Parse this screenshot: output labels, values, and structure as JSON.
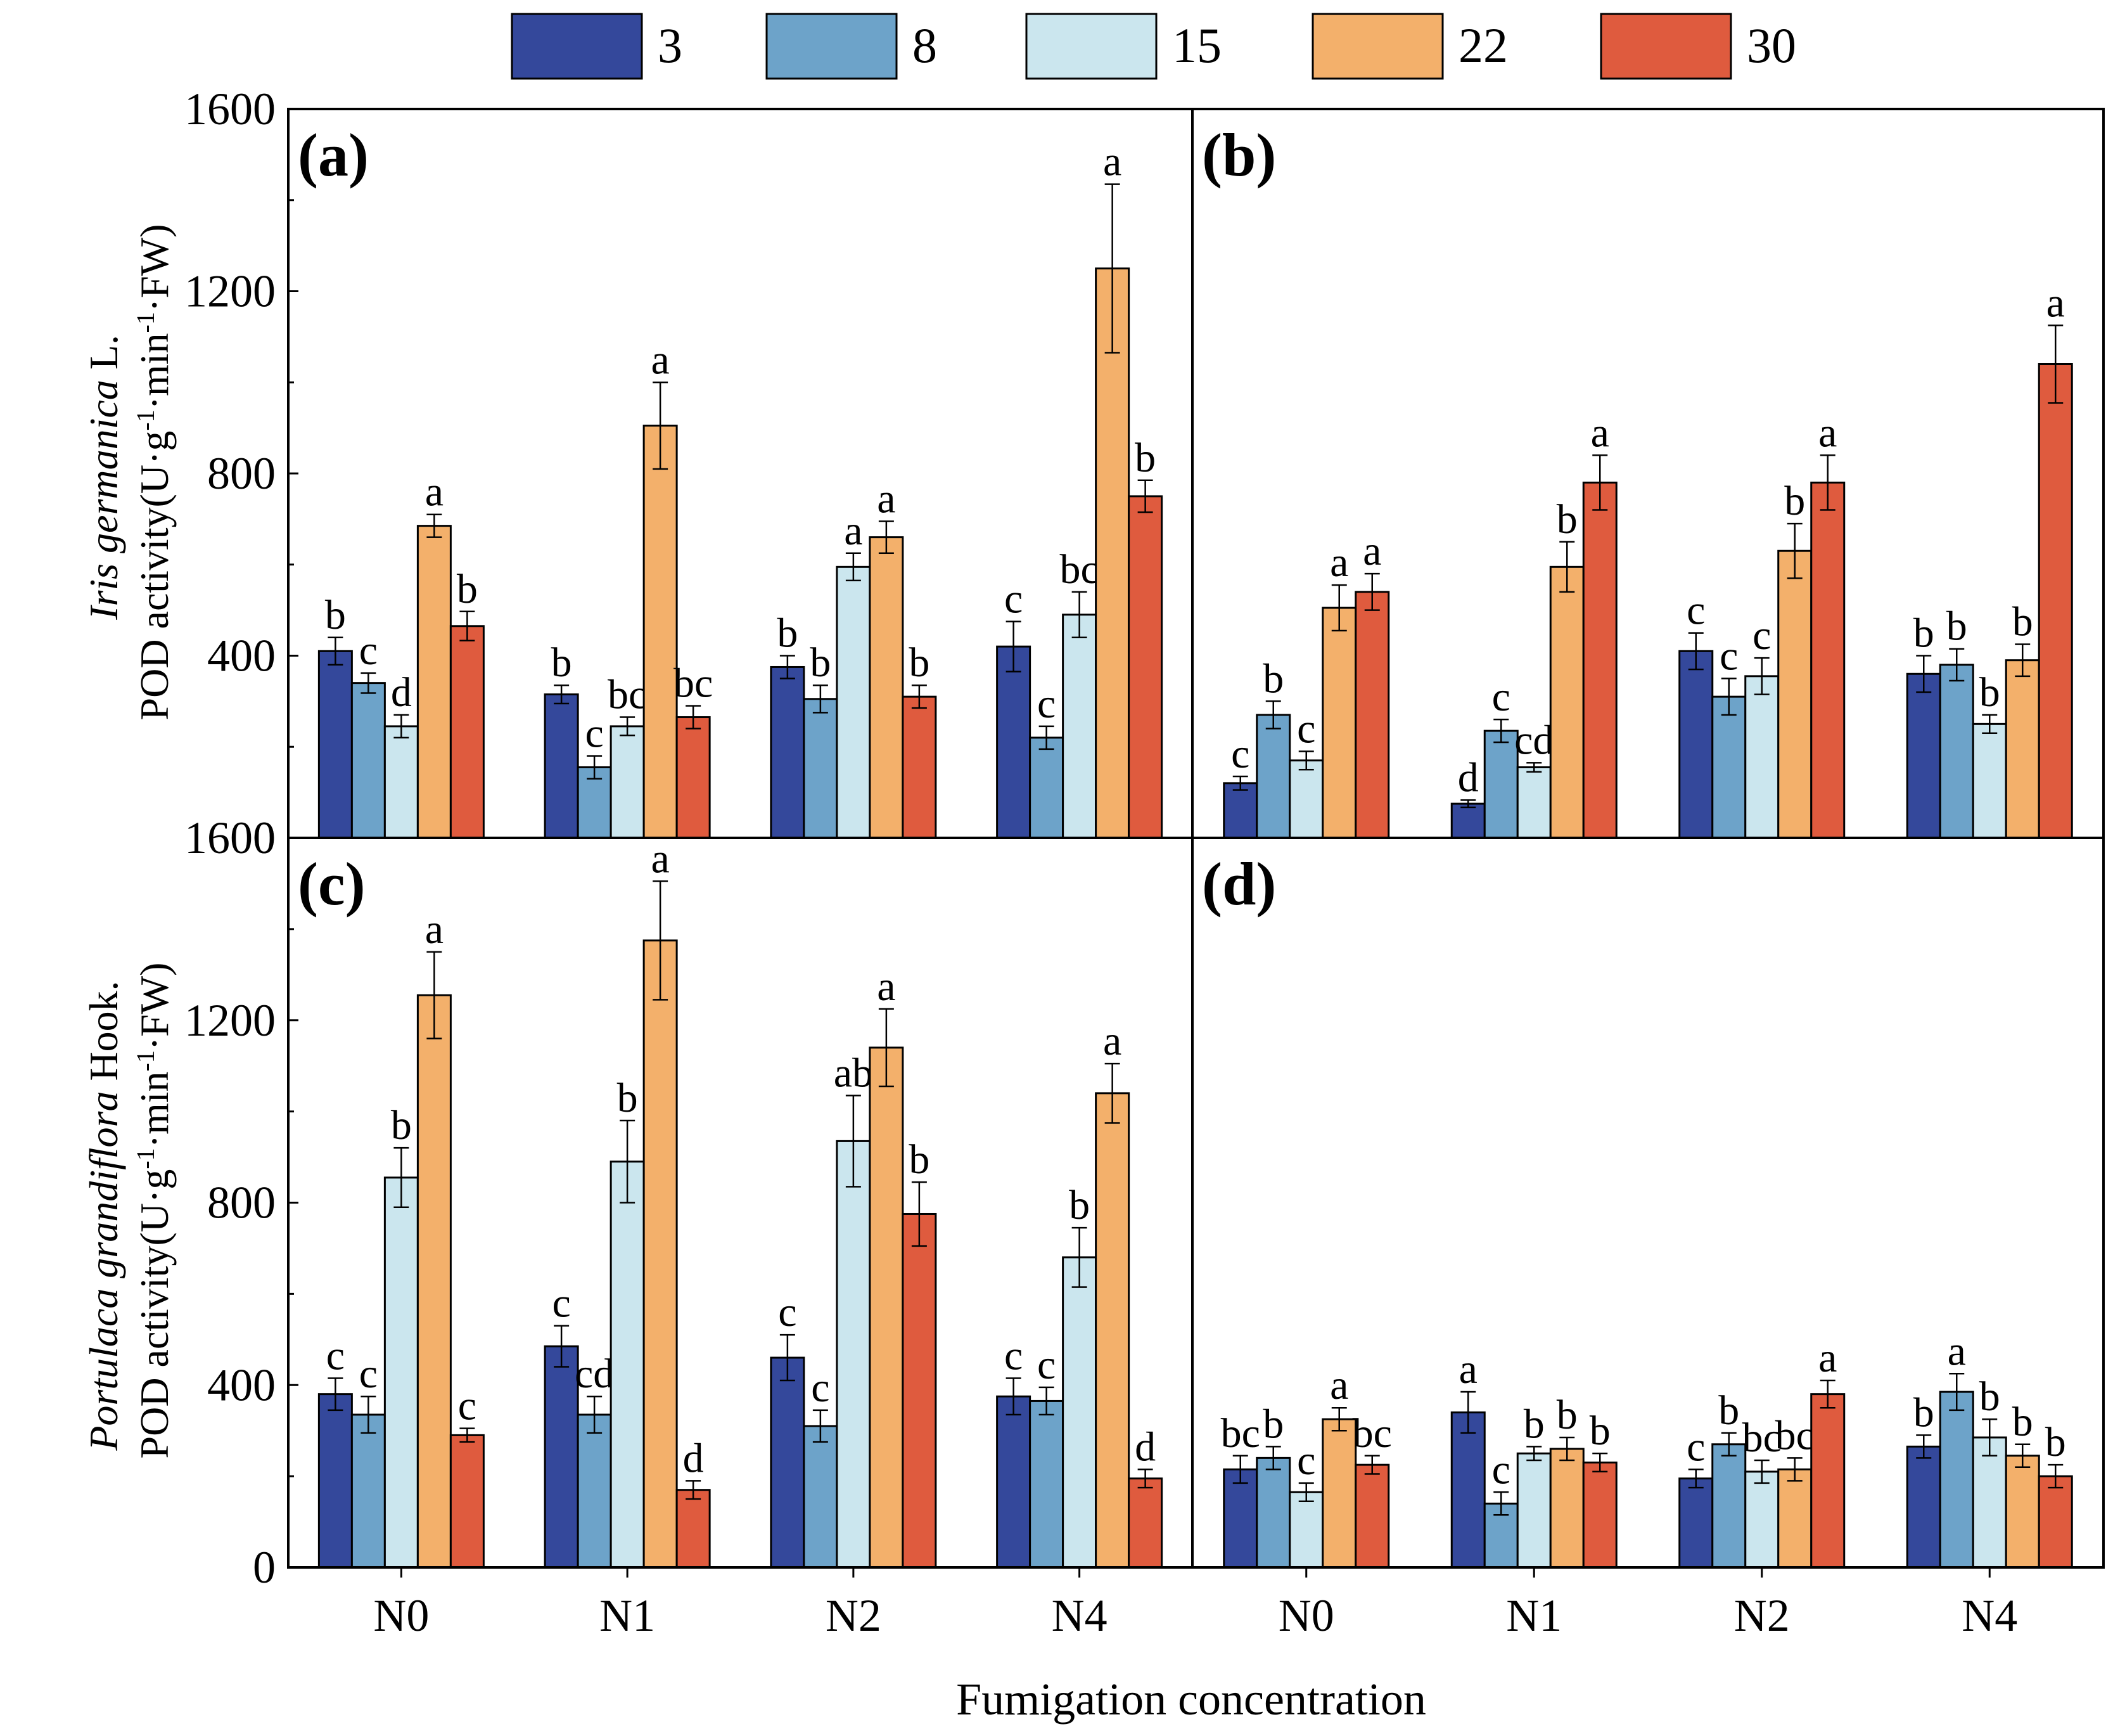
{
  "figure": {
    "x_axis_title": "Fumigation concentration",
    "y_axis_title_top": {
      "species": "Iris germanica",
      "suffix": " L.",
      "base": "POD activity(U·g",
      "sup1": "-1",
      "mid": "·min",
      "sup2": "-1",
      "end": "·FW)"
    },
    "y_axis_title_bottom": {
      "species": "Portulaca grandiflora",
      "suffix": " Hook.",
      "base": "POD activity(U·g",
      "sup1": "-1",
      "mid": "·min",
      "sup2": "-1",
      "end": "·FW)"
    }
  },
  "legend": [
    {
      "label": "3",
      "color": "#34489b"
    },
    {
      "label": "8",
      "color": "#6da3c9"
    },
    {
      "label": "15",
      "color": "#cbe6ee"
    },
    {
      "label": "22",
      "color": "#f3b06b"
    },
    {
      "label": "30",
      "color": "#df5b3e"
    }
  ],
  "chart_data": [
    {
      "panel": "(a)",
      "type": "bar",
      "categories": [
        "N0",
        "N1",
        "N2",
        "N4"
      ],
      "ylim": [
        0,
        1600
      ],
      "yticks": [
        0,
        400,
        800,
        1200,
        1600
      ],
      "series": [
        {
          "name": "3",
          "values": [
            410,
            315,
            375,
            420
          ],
          "errors": [
            30,
            20,
            25,
            55
          ],
          "letters": [
            "b",
            "b",
            "b",
            "c"
          ]
        },
        {
          "name": "8",
          "values": [
            340,
            155,
            305,
            220
          ],
          "errors": [
            22,
            25,
            30,
            25
          ],
          "letters": [
            "c",
            "c",
            "b",
            "c"
          ]
        },
        {
          "name": "15",
          "values": [
            245,
            245,
            595,
            490
          ],
          "errors": [
            25,
            20,
            30,
            50
          ],
          "letters": [
            "d",
            "bc",
            "a",
            "bc"
          ]
        },
        {
          "name": "22",
          "values": [
            685,
            905,
            660,
            1250
          ],
          "errors": [
            25,
            95,
            35,
            185
          ],
          "letters": [
            "a",
            "a",
            "a",
            "a"
          ]
        },
        {
          "name": "30",
          "values": [
            465,
            265,
            310,
            750
          ],
          "errors": [
            32,
            25,
            25,
            35
          ],
          "letters": [
            "b",
            "bc",
            "b",
            "b"
          ]
        }
      ]
    },
    {
      "panel": "(b)",
      "type": "bar",
      "categories": [
        "N0",
        "N1",
        "N2",
        "N4"
      ],
      "ylim": [
        0,
        1600
      ],
      "yticks": [
        0,
        400,
        800,
        1200,
        1600
      ],
      "series": [
        {
          "name": "3",
          "values": [
            120,
            75,
            410,
            360
          ],
          "errors": [
            15,
            8,
            40,
            40
          ],
          "letters": [
            "c",
            "d",
            "c",
            "b"
          ]
        },
        {
          "name": "8",
          "values": [
            270,
            235,
            310,
            380
          ],
          "errors": [
            30,
            25,
            40,
            35
          ],
          "letters": [
            "b",
            "c",
            "c",
            "b"
          ]
        },
        {
          "name": "15",
          "values": [
            170,
            155,
            355,
            250
          ],
          "errors": [
            20,
            10,
            40,
            20
          ],
          "letters": [
            "c",
            "cd",
            "c",
            "b"
          ]
        },
        {
          "name": "22",
          "values": [
            505,
            595,
            630,
            390
          ],
          "errors": [
            50,
            55,
            60,
            35
          ],
          "letters": [
            "a",
            "b",
            "b",
            "b"
          ]
        },
        {
          "name": "30",
          "values": [
            540,
            780,
            780,
            1040
          ],
          "errors": [
            40,
            60,
            60,
            85
          ],
          "letters": [
            "a",
            "a",
            "a",
            "a"
          ]
        }
      ]
    },
    {
      "panel": "(c)",
      "type": "bar",
      "categories": [
        "N0",
        "N1",
        "N2",
        "N4"
      ],
      "ylim": [
        0,
        1600
      ],
      "yticks": [
        0,
        400,
        800,
        1200,
        1600
      ],
      "series": [
        {
          "name": "3",
          "values": [
            380,
            485,
            460,
            375
          ],
          "errors": [
            35,
            45,
            50,
            40
          ],
          "letters": [
            "c",
            "c",
            "c",
            "c"
          ]
        },
        {
          "name": "8",
          "values": [
            335,
            335,
            310,
            365
          ],
          "errors": [
            40,
            40,
            35,
            30
          ],
          "letters": [
            "c",
            "cd",
            "c",
            "c"
          ]
        },
        {
          "name": "15",
          "values": [
            855,
            890,
            935,
            680
          ],
          "errors": [
            65,
            90,
            100,
            65
          ],
          "letters": [
            "b",
            "b",
            "ab",
            "b"
          ]
        },
        {
          "name": "22",
          "values": [
            1255,
            1375,
            1140,
            1040
          ],
          "errors": [
            95,
            130,
            85,
            65
          ],
          "letters": [
            "a",
            "a",
            "a",
            "a"
          ]
        },
        {
          "name": "30",
          "values": [
            290,
            170,
            775,
            195
          ],
          "errors": [
            15,
            20,
            70,
            20
          ],
          "letters": [
            "c",
            "d",
            "b",
            "d"
          ]
        }
      ]
    },
    {
      "panel": "(d)",
      "type": "bar",
      "categories": [
        "N0",
        "N1",
        "N2",
        "N4"
      ],
      "ylim": [
        0,
        1600
      ],
      "yticks": [
        0,
        400,
        800,
        1200,
        1600
      ],
      "series": [
        {
          "name": "3",
          "values": [
            215,
            340,
            195,
            265
          ],
          "errors": [
            30,
            45,
            20,
            25
          ],
          "letters": [
            "bc",
            "a",
            "c",
            "b"
          ]
        },
        {
          "name": "8",
          "values": [
            240,
            140,
            270,
            385
          ],
          "errors": [
            25,
            25,
            25,
            40
          ],
          "letters": [
            "b",
            "c",
            "b",
            "a"
          ]
        },
        {
          "name": "15",
          "values": [
            165,
            250,
            210,
            285
          ],
          "errors": [
            20,
            15,
            25,
            40
          ],
          "letters": [
            "c",
            "b",
            "bc",
            "b"
          ]
        },
        {
          "name": "22",
          "values": [
            325,
            260,
            215,
            245
          ],
          "errors": [
            25,
            25,
            25,
            25
          ],
          "letters": [
            "a",
            "b",
            "bc",
            "b"
          ]
        },
        {
          "name": "30",
          "values": [
            225,
            230,
            380,
            200
          ],
          "errors": [
            20,
            20,
            30,
            25
          ],
          "letters": [
            "bc",
            "b",
            "a",
            "b"
          ]
        }
      ]
    }
  ]
}
